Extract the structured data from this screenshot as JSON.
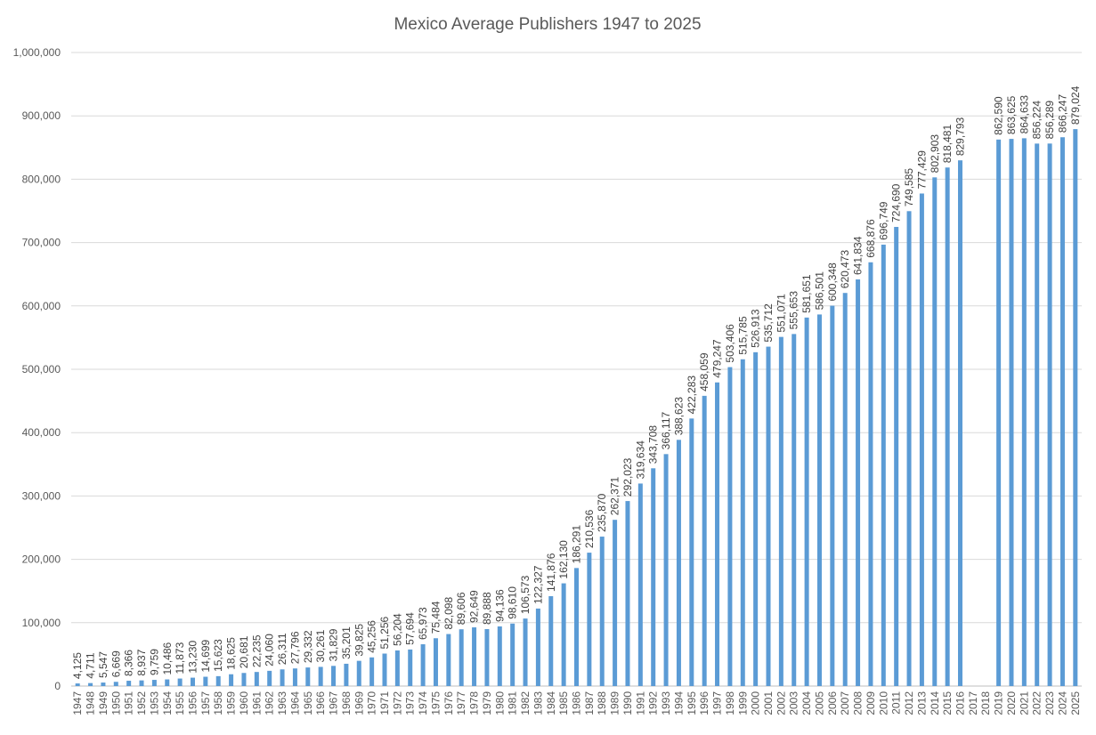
{
  "chart_data": {
    "type": "bar",
    "title": "Mexico Average Publishers 1947 to 2025",
    "xlabel": "",
    "ylabel": "",
    "ylim": [
      0,
      1000000
    ],
    "y_ticks": [
      "0",
      "100,000",
      "200,000",
      "300,000",
      "400,000",
      "500,000",
      "600,000",
      "700,000",
      "800,000",
      "900,000",
      "1,000,000"
    ],
    "y_tick_values": [
      0,
      100000,
      200000,
      300000,
      400000,
      500000,
      600000,
      700000,
      800000,
      900000,
      1000000
    ],
    "grid": true,
    "legend": "none",
    "bar_color": "#5B9BD5",
    "categories": [
      "1947",
      "1948",
      "1949",
      "1950",
      "1951",
      "1952",
      "1953",
      "1954",
      "1955",
      "1956",
      "1957",
      "1958",
      "1959",
      "1960",
      "1961",
      "1962",
      "1963",
      "1964",
      "1965",
      "1966",
      "1967",
      "1968",
      "1969",
      "1970",
      "1971",
      "1972",
      "1973",
      "1974",
      "1975",
      "1976",
      "1977",
      "1978",
      "1979",
      "1980",
      "1981",
      "1982",
      "1983",
      "1984",
      "1985",
      "1986",
      "1987",
      "1988",
      "1989",
      "1990",
      "1991",
      "1992",
      "1993",
      "1994",
      "1995",
      "1996",
      "1997",
      "1998",
      "1999",
      "2000",
      "2001",
      "2002",
      "2003",
      "2004",
      "2005",
      "2006",
      "2007",
      "2008",
      "2009",
      "2010",
      "2011",
      "2012",
      "2013",
      "2014",
      "2015",
      "2016",
      "2017",
      "2018",
      "2019",
      "2020",
      "2021",
      "2022",
      "2023",
      "2024",
      "2025"
    ],
    "values": [
      4125,
      4711,
      5547,
      6669,
      8366,
      8937,
      9759,
      10486,
      11873,
      13230,
      14699,
      15623,
      18625,
      20681,
      22235,
      24060,
      26311,
      27796,
      29332,
      30261,
      31829,
      35201,
      39825,
      45256,
      51256,
      56204,
      57694,
      65973,
      75484,
      82098,
      89606,
      92649,
      89888,
      94136,
      98610,
      106573,
      122327,
      141876,
      162130,
      186291,
      210536,
      235870,
      262371,
      292023,
      319634,
      343708,
      366117,
      388623,
      422283,
      458059,
      479247,
      503406,
      515785,
      526913,
      535712,
      551071,
      555653,
      581651,
      586501,
      600348,
      620473,
      641834,
      668876,
      696749,
      724690,
      749585,
      777429,
      802903,
      818481,
      829793,
      null,
      null,
      862590,
      863625,
      864633,
      856224,
      856289,
      866247,
      879024
    ]
  }
}
